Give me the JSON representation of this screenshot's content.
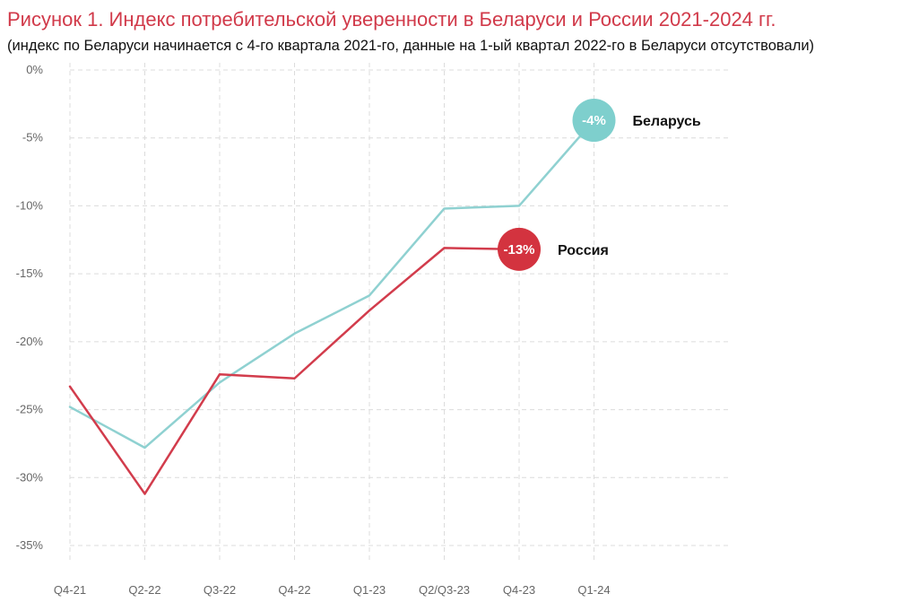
{
  "chart_data": {
    "type": "line",
    "title": "Рисунок 1. Индекс потребительской уверенности в Беларуси и России 2021-2024 гг.",
    "subtitle": "(индекс по Беларуси начинается с 4-го квартала 2021-го, данные на 1-ый квартал 2022-го в Беларуси отсутствовали)",
    "categories": [
      "Q4-21",
      "Q2-22",
      "Q3-22",
      "Q4-22",
      "Q1-23",
      "Q2/Q3-23",
      "Q4-23",
      "Q1-24"
    ],
    "ylim": [
      -35,
      0
    ],
    "yticks": [
      0,
      -5,
      -10,
      -15,
      -20,
      -25,
      -30,
      -35
    ],
    "ytick_labels": [
      "0%",
      "-5%",
      "-10%",
      "-15%",
      "-20%",
      "-25%",
      "-30%",
      "-35%"
    ],
    "grid": true,
    "series": [
      {
        "name": "Беларусь",
        "color": "#8fd1d1",
        "bubble_color": "#7ecfcd",
        "values": [
          -24.8,
          -27.8,
          -23.0,
          -19.4,
          -16.6,
          -10.2,
          -10.0,
          -3.7
        ],
        "end_label": "-4%"
      },
      {
        "name": "Россия",
        "color": "#d23c4c",
        "bubble_color": "#d3333f",
        "values": [
          -23.3,
          -31.2,
          -22.4,
          -22.7,
          -17.7,
          -13.1,
          -13.2,
          null
        ],
        "end_label": "-13%"
      }
    ]
  }
}
